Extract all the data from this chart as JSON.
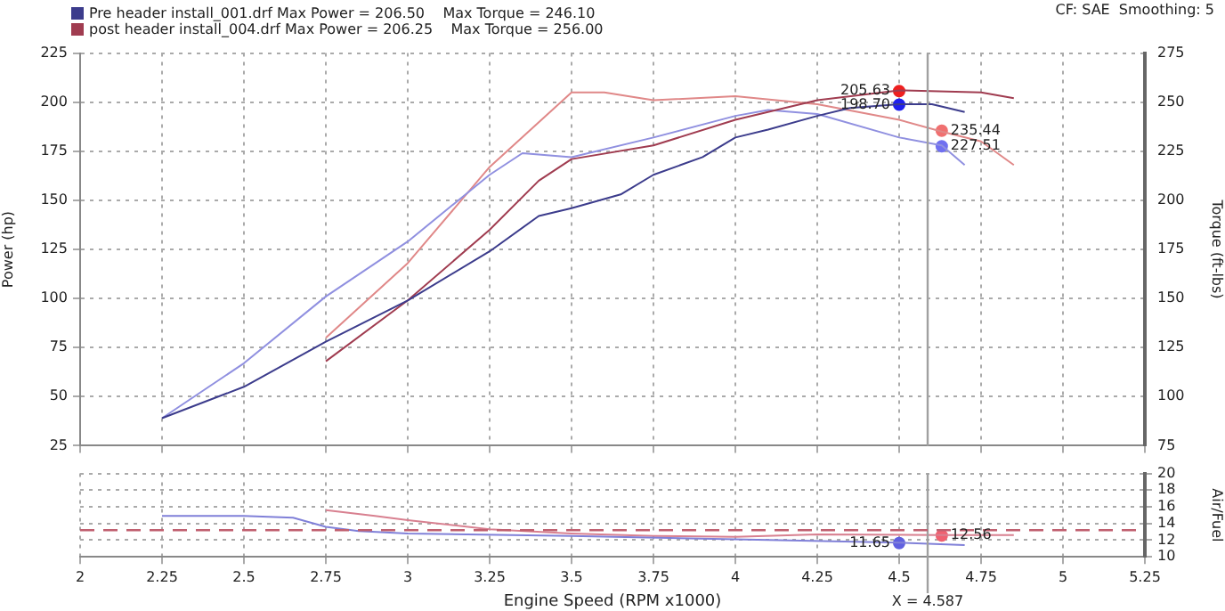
{
  "chart_data": [
    {
      "type": "line",
      "ylabel": "Power (hp)",
      "y2label": "Torque (ft-lbs)",
      "annotations": [
        "CF: SAE  Smoothing: 5"
      ],
      "legend": "top left",
      "grid": true,
      "tick_labels": "y",
      "xlim": [
        2.0,
        5.25
      ],
      "xticks": [
        2.0,
        2.25,
        2.5,
        2.75,
        3.0,
        3.25,
        3.5,
        3.75,
        4.0,
        4.25,
        4.5,
        4.75,
        5.0,
        5.25
      ],
      "ylim": [
        25,
        225
      ],
      "yticks": [
        25,
        50,
        75,
        100,
        125,
        150,
        175,
        200,
        225
      ],
      "y2lim": [
        75,
        275
      ],
      "y2ticks": [
        75,
        100,
        125,
        150,
        175,
        200,
        225,
        250,
        275
      ],
      "ref_lines": [
        {
          "axis": "x",
          "value": 4.587,
          "color": "#a0a0a0"
        }
      ],
      "series": [
        {
          "name": "Pre header install_001.drf Max Power = 206.50    Max Torque = 246.10",
          "color": "#3c3c8c",
          "x": [
            2.25,
            2.5,
            2.75,
            3.0,
            3.25,
            3.4,
            3.5,
            3.65,
            3.75,
            3.9,
            4.0,
            4.1,
            4.25,
            4.35,
            4.5,
            4.6,
            4.7
          ],
          "values": [
            39,
            55,
            78,
            99,
            124,
            142,
            146,
            153,
            163,
            172,
            182,
            186,
            193,
            197,
            199,
            199,
            195
          ]
        },
        {
          "name": "post header install_004.drf Max Power = 206.25    Max Torque = 256.00",
          "color": "#a03c50",
          "x": [
            2.75,
            3.0,
            3.25,
            3.4,
            3.5,
            3.75,
            4.0,
            4.25,
            4.5,
            4.75,
            4.85
          ],
          "values": [
            68,
            99,
            135,
            160,
            171,
            178,
            191,
            201,
            206,
            205,
            202
          ]
        },
        {
          "color": "#9090e0",
          "axis": "y2",
          "x": [
            2.25,
            2.5,
            2.75,
            3.0,
            3.25,
            3.35,
            3.5,
            3.75,
            4.0,
            4.1,
            4.25,
            4.5,
            4.63,
            4.7
          ],
          "values": [
            89,
            117,
            151,
            179,
            213,
            224,
            222,
            232,
            243,
            246,
            244,
            232,
            228,
            218
          ]
        },
        {
          "color": "#e08888",
          "axis": "y2",
          "x": [
            2.75,
            3.0,
            3.25,
            3.5,
            3.6,
            3.75,
            4.0,
            4.25,
            4.5,
            4.63,
            4.75,
            4.85
          ],
          "values": [
            130,
            168,
            217,
            255,
            255,
            251,
            253,
            249,
            241,
            235,
            230,
            218
          ]
        },
        {
          "type": "scatter",
          "color": "#ee2020",
          "x": [
            4.5
          ],
          "values": [
            205.63
          ],
          "value_labels": [
            "205.63"
          ]
        },
        {
          "type": "scatter",
          "color": "#2020ee",
          "x": [
            4.5
          ],
          "values": [
            198.7
          ],
          "value_labels": [
            "198.70"
          ]
        },
        {
          "type": "scatter",
          "color": "#f07070",
          "axis": "y2",
          "x": [
            4.63
          ],
          "values": [
            235.44
          ],
          "value_labels": [
            "235.44"
          ]
        },
        {
          "type": "scatter",
          "color": "#7070f0",
          "axis": "y2",
          "x": [
            4.63
          ],
          "values": [
            227.51
          ],
          "value_labels": [
            "227.51"
          ]
        }
      ]
    },
    {
      "type": "line",
      "xlabel": "Engine Speed (RPM x1000)",
      "y2label": "Air/Fuel",
      "grid": true,
      "xlim": [
        2.0,
        5.25
      ],
      "xticks": [
        2.0,
        2.25,
        2.5,
        2.75,
        3.0,
        3.25,
        3.5,
        3.75,
        4.0,
        4.25,
        4.5,
        4.75,
        5.0,
        5.25
      ],
      "y2lim": [
        10,
        20
      ],
      "y2ticks": [
        10,
        12,
        14,
        16,
        18,
        20
      ],
      "ref_lines": [
        {
          "axis": "x",
          "value": 4.587,
          "label": "X = 4.587",
          "color": "#a0a0a0"
        },
        {
          "axis": "y2",
          "value": 13.2,
          "color": "#c06070",
          "line_style": "dashed"
        }
      ],
      "series": [
        {
          "color": "#8080d8",
          "axis": "y2",
          "x": [
            2.25,
            2.5,
            2.65,
            2.75,
            2.85,
            3.0,
            3.5,
            4.0,
            4.5,
            4.7
          ],
          "values": [
            14.9,
            14.9,
            14.7,
            13.6,
            13.1,
            12.8,
            12.5,
            12.1,
            11.7,
            11.4
          ]
        },
        {
          "color": "#d88090",
          "axis": "y2",
          "x": [
            2.75,
            2.9,
            3.0,
            3.25,
            3.5,
            3.75,
            4.0,
            4.25,
            4.63,
            4.85
          ],
          "values": [
            15.6,
            14.9,
            14.4,
            13.3,
            12.8,
            12.5,
            12.4,
            12.7,
            12.6,
            12.6
          ]
        },
        {
          "type": "scatter",
          "color": "#6060e0",
          "axis": "y2",
          "x": [
            4.5
          ],
          "values": [
            11.65
          ],
          "value_labels": [
            "11.65"
          ]
        },
        {
          "type": "scatter",
          "color": "#f06070",
          "axis": "y2",
          "x": [
            4.63
          ],
          "values": [
            12.56
          ],
          "value_labels": [
            "12.56"
          ]
        }
      ]
    }
  ]
}
